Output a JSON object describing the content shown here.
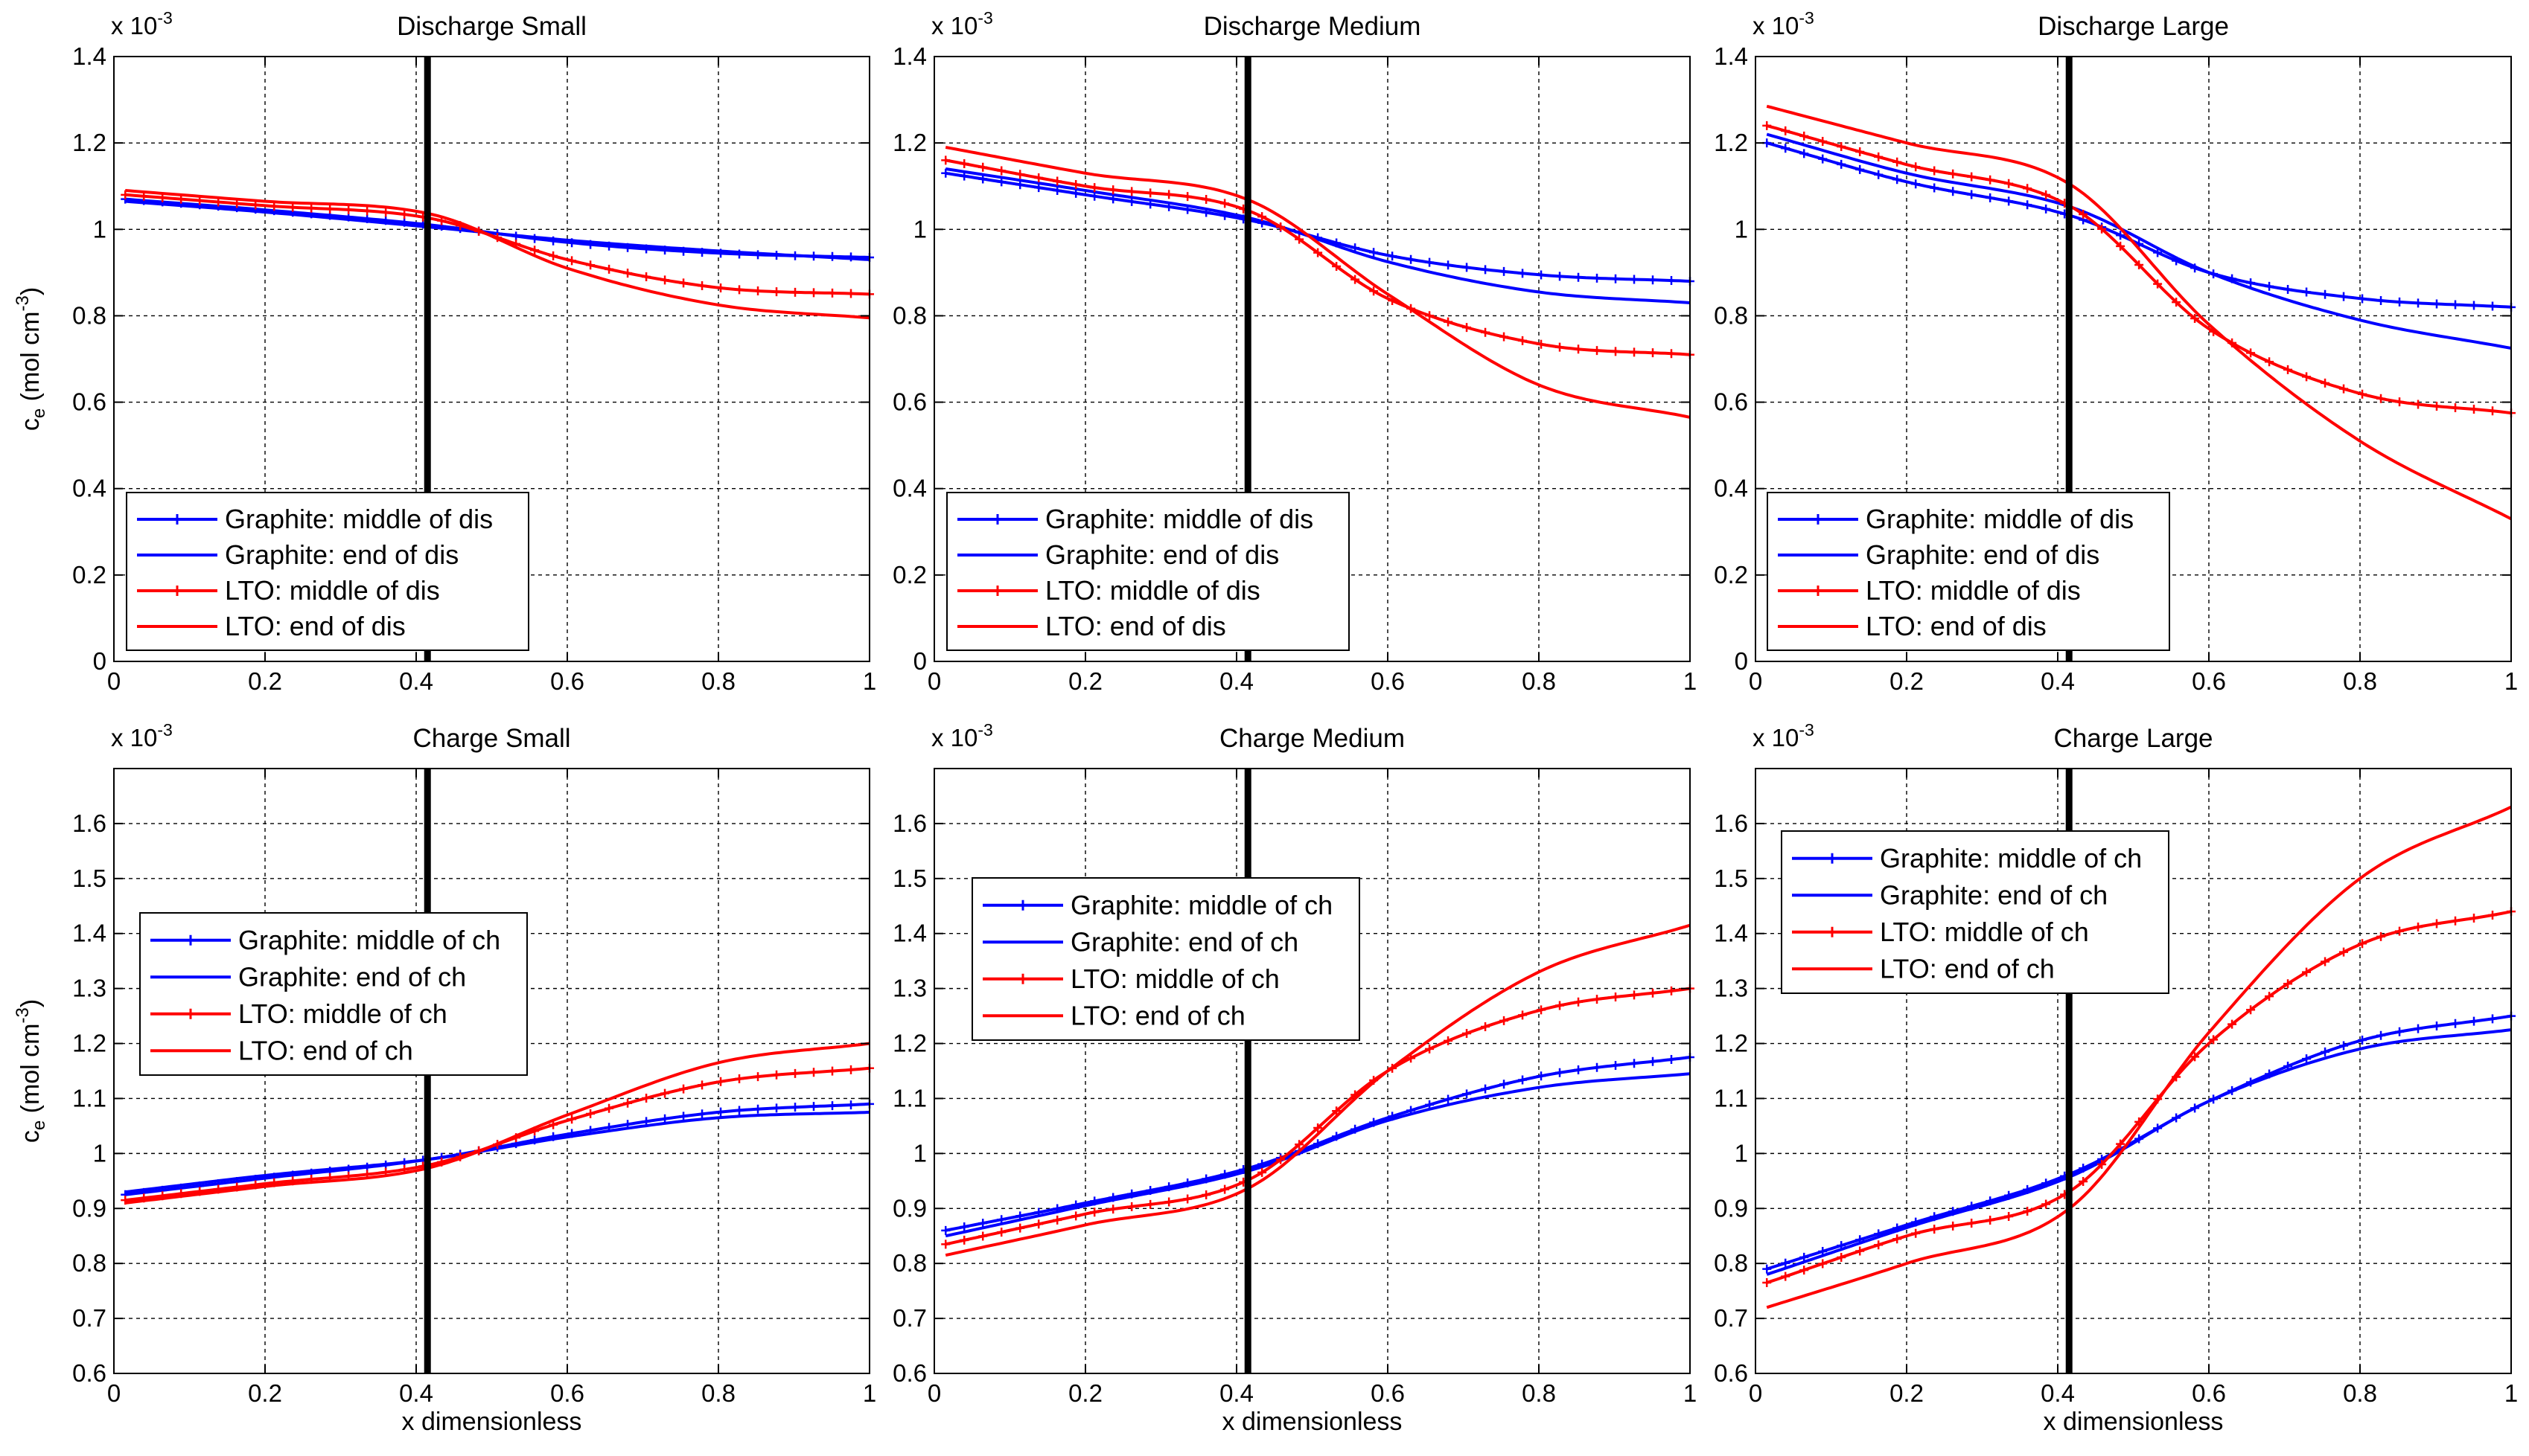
{
  "colors": {
    "graphite": "#0000ff",
    "lto": "#ff0000",
    "axis": "#000000",
    "grid": "#000000"
  },
  "shared": {
    "ylabel_main": "c",
    "ylabel_sub": "e",
    "ylabel_unit": " (mol cm",
    "ylabel_power": "-3",
    "ylabel_close": ")",
    "xlabel": "x dimensionless",
    "exponent_prefix": "x 10",
    "exponent_power": "-3"
  },
  "chart_data": [
    {
      "id": "discharge-small",
      "type": "line",
      "title": "Discharge Small",
      "xlim": [
        0,
        1
      ],
      "ylim": [
        0,
        1.4
      ],
      "xticks": [
        0,
        0.2,
        0.4,
        0.6,
        0.8,
        1
      ],
      "xtick_labels": [
        "0",
        "0.2",
        "0.4",
        "0.6",
        "0.8",
        "1"
      ],
      "yticks": [
        0,
        0.2,
        0.4,
        0.6,
        0.8,
        1,
        1.2,
        1.4
      ],
      "ytick_labels": [
        "0",
        "0.2",
        "0.4",
        "0.6",
        "0.8",
        "1",
        "1.2",
        "1.4"
      ],
      "separator_x": 0.415,
      "grid": true,
      "legend_position": "bottom-left",
      "series": [
        {
          "name": "Graphite: middle of dis",
          "color": "#0000ff",
          "marker": true,
          "anchors_x": [
            0.015,
            0.2,
            0.42,
            0.6,
            0.8,
            1.0
          ],
          "anchors_y": [
            1.07,
            1.045,
            1.01,
            0.97,
            0.945,
            0.935
          ]
        },
        {
          "name": "Graphite: end of dis",
          "color": "#0000ff",
          "marker": false,
          "anchors_x": [
            0.015,
            0.2,
            0.42,
            0.6,
            0.8,
            1.0
          ],
          "anchors_y": [
            1.065,
            1.04,
            1.005,
            0.975,
            0.95,
            0.93
          ]
        },
        {
          "name": "LTO: middle of dis",
          "color": "#ff0000",
          "marker": true,
          "anchors_x": [
            0.015,
            0.2,
            0.42,
            0.6,
            0.8,
            1.0
          ],
          "anchors_y": [
            1.08,
            1.055,
            1.025,
            0.93,
            0.865,
            0.85
          ]
        },
        {
          "name": "LTO: end of dis",
          "color": "#ff0000",
          "marker": false,
          "anchors_x": [
            0.015,
            0.2,
            0.42,
            0.6,
            0.8,
            1.0
          ],
          "anchors_y": [
            1.09,
            1.065,
            1.035,
            0.91,
            0.825,
            0.795
          ]
        }
      ]
    },
    {
      "id": "discharge-medium",
      "type": "line",
      "title": "Discharge Medium",
      "xlim": [
        0,
        1
      ],
      "ylim": [
        0,
        1.4
      ],
      "xticks": [
        0,
        0.2,
        0.4,
        0.6,
        0.8,
        1
      ],
      "xtick_labels": [
        "0",
        "0.2",
        "0.4",
        "0.6",
        "0.8",
        "1"
      ],
      "yticks": [
        0,
        0.2,
        0.4,
        0.6,
        0.8,
        1,
        1.2,
        1.4
      ],
      "ytick_labels": [
        "0",
        "0.2",
        "0.4",
        "0.6",
        "0.8",
        "1",
        "1.2",
        "1.4"
      ],
      "separator_x": 0.415,
      "grid": true,
      "legend_position": "bottom-left",
      "series": [
        {
          "name": "Graphite: middle of dis",
          "color": "#0000ff",
          "marker": true,
          "anchors_x": [
            0.015,
            0.2,
            0.42,
            0.6,
            0.8,
            1.0
          ],
          "anchors_y": [
            1.13,
            1.08,
            1.02,
            0.94,
            0.895,
            0.88
          ]
        },
        {
          "name": "Graphite: end of dis",
          "color": "#0000ff",
          "marker": false,
          "anchors_x": [
            0.015,
            0.2,
            0.42,
            0.6,
            0.8,
            1.0
          ],
          "anchors_y": [
            1.14,
            1.09,
            1.025,
            0.925,
            0.855,
            0.83
          ]
        },
        {
          "name": "LTO: middle of dis",
          "color": "#ff0000",
          "marker": true,
          "anchors_x": [
            0.015,
            0.2,
            0.42,
            0.6,
            0.8,
            1.0
          ],
          "anchors_y": [
            1.16,
            1.1,
            1.04,
            0.84,
            0.735,
            0.71
          ]
        },
        {
          "name": "LTO: end of dis",
          "color": "#ff0000",
          "marker": false,
          "anchors_x": [
            0.015,
            0.2,
            0.42,
            0.6,
            0.8,
            1.0
          ],
          "anchors_y": [
            1.19,
            1.13,
            1.065,
            0.85,
            0.64,
            0.565
          ]
        }
      ]
    },
    {
      "id": "discharge-large",
      "type": "line",
      "title": "Discharge Large",
      "xlim": [
        0,
        1
      ],
      "ylim": [
        0,
        1.4
      ],
      "xticks": [
        0,
        0.2,
        0.4,
        0.6,
        0.8,
        1
      ],
      "xtick_labels": [
        "0",
        "0.2",
        "0.4",
        "0.6",
        "0.8",
        "1"
      ],
      "yticks": [
        0,
        0.2,
        0.4,
        0.6,
        0.8,
        1,
        1.2,
        1.4
      ],
      "ytick_labels": [
        "0",
        "0.2",
        "0.4",
        "0.6",
        "0.8",
        "1",
        "1.2",
        "1.4"
      ],
      "separator_x": 0.415,
      "grid": true,
      "legend_position": "bottom-left",
      "series": [
        {
          "name": "Graphite: middle of dis",
          "color": "#0000ff",
          "marker": true,
          "anchors_x": [
            0.015,
            0.2,
            0.42,
            0.6,
            0.8,
            1.0
          ],
          "anchors_y": [
            1.2,
            1.11,
            1.03,
            0.9,
            0.84,
            0.82
          ]
        },
        {
          "name": "Graphite: end of dis",
          "color": "#0000ff",
          "marker": false,
          "anchors_x": [
            0.015,
            0.2,
            0.42,
            0.6,
            0.8,
            1.0
          ],
          "anchors_y": [
            1.22,
            1.13,
            1.05,
            0.9,
            0.79,
            0.725
          ]
        },
        {
          "name": "LTO: middle of dis",
          "color": "#ff0000",
          "marker": true,
          "anchors_x": [
            0.015,
            0.2,
            0.42,
            0.6,
            0.8,
            1.0
          ],
          "anchors_y": [
            1.24,
            1.15,
            1.05,
            0.77,
            0.62,
            0.575
          ]
        },
        {
          "name": "LTO: end of dis",
          "color": "#ff0000",
          "marker": false,
          "anchors_x": [
            0.015,
            0.2,
            0.42,
            0.6,
            0.8,
            1.0
          ],
          "anchors_y": [
            1.285,
            1.2,
            1.1,
            0.78,
            0.51,
            0.33
          ]
        }
      ]
    },
    {
      "id": "charge-small",
      "type": "line",
      "title": "Charge Small",
      "xlim": [
        0,
        1
      ],
      "ylim": [
        0.6,
        1.7
      ],
      "xticks": [
        0,
        0.2,
        0.4,
        0.6,
        0.8,
        1
      ],
      "xtick_labels": [
        "0",
        "0.2",
        "0.4",
        "0.6",
        "0.8",
        "1"
      ],
      "yticks": [
        0.6,
        0.7,
        0.8,
        0.9,
        1,
        1.1,
        1.2,
        1.3,
        1.4,
        1.5,
        1.6
      ],
      "ytick_labels": [
        "0.6",
        "0.7",
        "0.8",
        "0.9",
        "1",
        "1.1",
        "1.2",
        "1.3",
        "1.4",
        "1.5",
        "1.6"
      ],
      "separator_x": 0.415,
      "grid": true,
      "legend_position": "center-left",
      "series": [
        {
          "name": "Graphite: middle of ch",
          "color": "#0000ff",
          "marker": true,
          "anchors_x": [
            0.015,
            0.2,
            0.42,
            0.6,
            0.8,
            1.0
          ],
          "anchors_y": [
            0.925,
            0.955,
            0.99,
            1.035,
            1.075,
            1.09
          ]
        },
        {
          "name": "Graphite: end of ch",
          "color": "#0000ff",
          "marker": false,
          "anchors_x": [
            0.015,
            0.2,
            0.42,
            0.6,
            0.8,
            1.0
          ],
          "anchors_y": [
            0.93,
            0.96,
            0.99,
            1.03,
            1.065,
            1.075
          ]
        },
        {
          "name": "LTO: middle of ch",
          "color": "#ff0000",
          "marker": true,
          "anchors_x": [
            0.015,
            0.2,
            0.42,
            0.6,
            0.8,
            1.0
          ],
          "anchors_y": [
            0.915,
            0.945,
            0.98,
            1.06,
            1.13,
            1.155
          ]
        },
        {
          "name": "LTO: end of ch",
          "color": "#ff0000",
          "marker": false,
          "anchors_x": [
            0.015,
            0.2,
            0.42,
            0.6,
            0.8,
            1.0
          ],
          "anchors_y": [
            0.91,
            0.94,
            0.975,
            1.07,
            1.165,
            1.2
          ]
        }
      ]
    },
    {
      "id": "charge-medium",
      "type": "line",
      "title": "Charge Medium",
      "xlim": [
        0,
        1
      ],
      "ylim": [
        0.6,
        1.7
      ],
      "xticks": [
        0,
        0.2,
        0.4,
        0.6,
        0.8,
        1
      ],
      "xtick_labels": [
        "0",
        "0.2",
        "0.4",
        "0.6",
        "0.8",
        "1"
      ],
      "yticks": [
        0.6,
        0.7,
        0.8,
        0.9,
        1,
        1.1,
        1.2,
        1.3,
        1.4,
        1.5,
        1.6
      ],
      "ytick_labels": [
        "0.6",
        "0.7",
        "0.8",
        "0.9",
        "1",
        "1.1",
        "1.2",
        "1.3",
        "1.4",
        "1.5",
        "1.6"
      ],
      "separator_x": 0.415,
      "grid": true,
      "legend_position": "upper-left",
      "series": [
        {
          "name": "Graphite: middle of ch",
          "color": "#0000ff",
          "marker": true,
          "anchors_x": [
            0.015,
            0.2,
            0.42,
            0.6,
            0.8,
            1.0
          ],
          "anchors_y": [
            0.86,
            0.91,
            0.975,
            1.065,
            1.14,
            1.175
          ]
        },
        {
          "name": "Graphite: end of ch",
          "color": "#0000ff",
          "marker": false,
          "anchors_x": [
            0.015,
            0.2,
            0.42,
            0.6,
            0.8,
            1.0
          ],
          "anchors_y": [
            0.85,
            0.905,
            0.97,
            1.06,
            1.12,
            1.145
          ]
        },
        {
          "name": "LTO: middle of ch",
          "color": "#ff0000",
          "marker": true,
          "anchors_x": [
            0.015,
            0.2,
            0.42,
            0.6,
            0.8,
            1.0
          ],
          "anchors_y": [
            0.835,
            0.89,
            0.955,
            1.15,
            1.26,
            1.3
          ]
        },
        {
          "name": "LTO: end of ch",
          "color": "#ff0000",
          "marker": false,
          "anchors_x": [
            0.015,
            0.2,
            0.42,
            0.6,
            0.8,
            1.0
          ],
          "anchors_y": [
            0.815,
            0.87,
            0.94,
            1.15,
            1.33,
            1.415
          ]
        }
      ]
    },
    {
      "id": "charge-large",
      "type": "line",
      "title": "Charge Large",
      "xlim": [
        0,
        1
      ],
      "ylim": [
        0.6,
        1.7
      ],
      "xticks": [
        0,
        0.2,
        0.4,
        0.6,
        0.8,
        1
      ],
      "xtick_labels": [
        "0",
        "0.2",
        "0.4",
        "0.6",
        "0.8",
        "1"
      ],
      "yticks": [
        0.6,
        0.7,
        0.8,
        0.9,
        1,
        1.1,
        1.2,
        1.3,
        1.4,
        1.5,
        1.6
      ],
      "ytick_labels": [
        "0.6",
        "0.7",
        "0.8",
        "0.9",
        "1",
        "1.1",
        "1.2",
        "1.3",
        "1.4",
        "1.5",
        "1.6"
      ],
      "separator_x": 0.415,
      "grid": true,
      "legend_position": "upper-left",
      "series": [
        {
          "name": "Graphite: middle of ch",
          "color": "#0000ff",
          "marker": true,
          "anchors_x": [
            0.015,
            0.2,
            0.42,
            0.6,
            0.8,
            1.0
          ],
          "anchors_y": [
            0.79,
            0.87,
            0.965,
            1.095,
            1.205,
            1.25
          ]
        },
        {
          "name": "Graphite: end of ch",
          "color": "#0000ff",
          "marker": false,
          "anchors_x": [
            0.015,
            0.2,
            0.42,
            0.6,
            0.8,
            1.0
          ],
          "anchors_y": [
            0.78,
            0.865,
            0.96,
            1.095,
            1.19,
            1.225
          ]
        },
        {
          "name": "LTO: middle of ch",
          "color": "#ff0000",
          "marker": true,
          "anchors_x": [
            0.015,
            0.2,
            0.42,
            0.6,
            0.8,
            1.0
          ],
          "anchors_y": [
            0.765,
            0.85,
            0.935,
            1.2,
            1.38,
            1.44
          ]
        },
        {
          "name": "LTO: end of ch",
          "color": "#ff0000",
          "marker": false,
          "anchors_x": [
            0.015,
            0.2,
            0.42,
            0.6,
            0.8,
            1.0
          ],
          "anchors_y": [
            0.72,
            0.8,
            0.905,
            1.22,
            1.5,
            1.63
          ]
        }
      ]
    }
  ]
}
